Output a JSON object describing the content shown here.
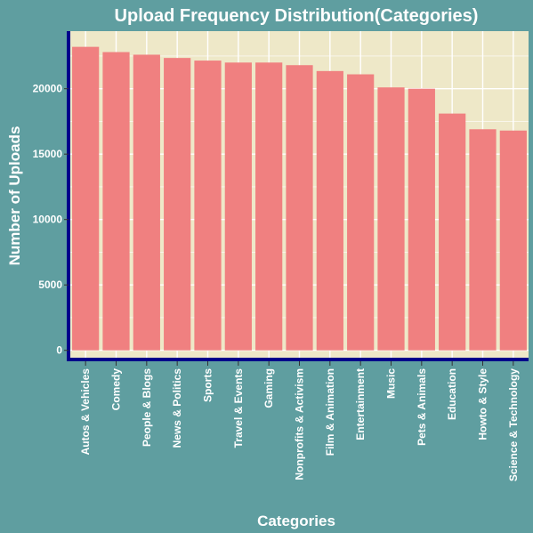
{
  "chart_data": {
    "type": "bar",
    "title": "Upload Frequency Distribution(Categories)",
    "xlabel": "Categories",
    "ylabel": "Number of Uploads",
    "categories": [
      "Autos & Vehicles",
      "Comedy",
      "People & Blogs",
      "News & Politics",
      "Sports",
      "Travel & Events",
      "Gaming",
      "Nonprofits & Activism",
      "Film & Animation",
      "Entertainment",
      "Music",
      "Pets & Animals",
      "Education",
      "Howto & Style",
      "Science & Technology"
    ],
    "values": [
      23200,
      22800,
      22600,
      22350,
      22150,
      22000,
      22000,
      21800,
      21350,
      21100,
      20100,
      20000,
      18100,
      16900,
      16800
    ],
    "yticks": [
      0,
      5000,
      10000,
      15000,
      20000
    ],
    "ylim": [
      -700,
      24400
    ],
    "grid": true,
    "legend": "none",
    "colors": {
      "page_background": "#5f9ea0",
      "plot_background": "#eee8c8",
      "grid": "#ffffff",
      "bar": "#f08080",
      "axis_line": "#00008b",
      "text": "#ffffff"
    }
  }
}
